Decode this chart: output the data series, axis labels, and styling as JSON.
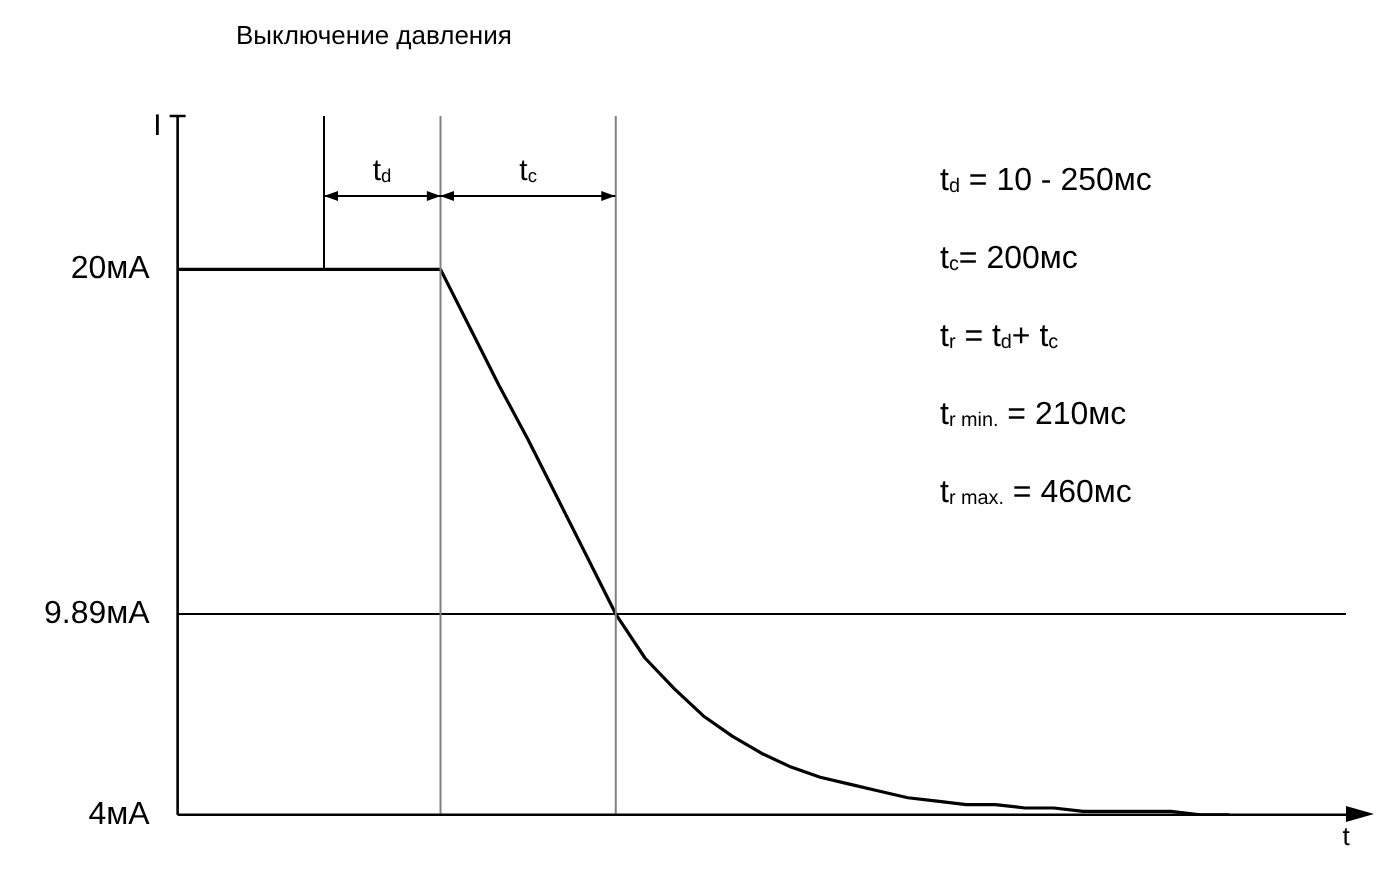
{
  "chart_data": {
    "type": "line",
    "title": "Выключение давления",
    "xlabel": "t",
    "ylabel": "I",
    "categories": [
      null,
      null,
      null,
      null,
      null,
      null,
      null,
      null,
      null,
      null,
      null,
      null,
      null,
      null,
      null,
      null,
      null,
      null,
      null,
      null,
      null,
      null,
      null,
      null,
      null,
      null,
      null,
      null,
      null,
      null,
      null,
      null,
      null,
      null,
      null,
      null,
      null,
      null,
      null,
      null,
      null
    ],
    "series": [
      {
        "color": "#000000",
        "values": [
          20,
          20,
          20,
          20,
          20,
          20,
          20,
          20,
          20,
          20,
          18.3,
          16.6,
          15,
          13.3,
          11.6,
          9.89,
          8.6,
          7.7,
          6.9,
          6.3,
          5.8,
          5.4,
          5.1,
          4.9,
          4.7,
          4.5,
          4.4,
          4.3,
          4.3,
          4.2,
          4.2,
          4.1,
          4.1,
          4.1,
          4.1,
          4,
          4,
          null,
          null,
          null,
          null
        ]
      }
    ],
    "ylim": [
      4,
      24.5
    ],
    "yticks": [
      {
        "value": 20,
        "label": "20мА"
      },
      {
        "value": 9.89,
        "label": "9.89мА"
      },
      {
        "value": 4,
        "label": "4мА"
      }
    ],
    "grid": false,
    "legend": false,
    "marker": "none",
    "line_style": "solid",
    "ref_lines": [
      {
        "axis": "y",
        "value": 9.89,
        "color": "#000000"
      }
    ],
    "annotations": [
      "t$_{d}$",
      "t$_{c}$",
      "t$_{d}$ = 10 - 250мс",
      "t$_{c}$= 200мс",
      "t$_{r}$ = t$_{d}$+ t$_{c}$",
      "t$_{r min.}$ = 210мс",
      "t$_{r max.}$ = 460мс"
    ]
  }
}
